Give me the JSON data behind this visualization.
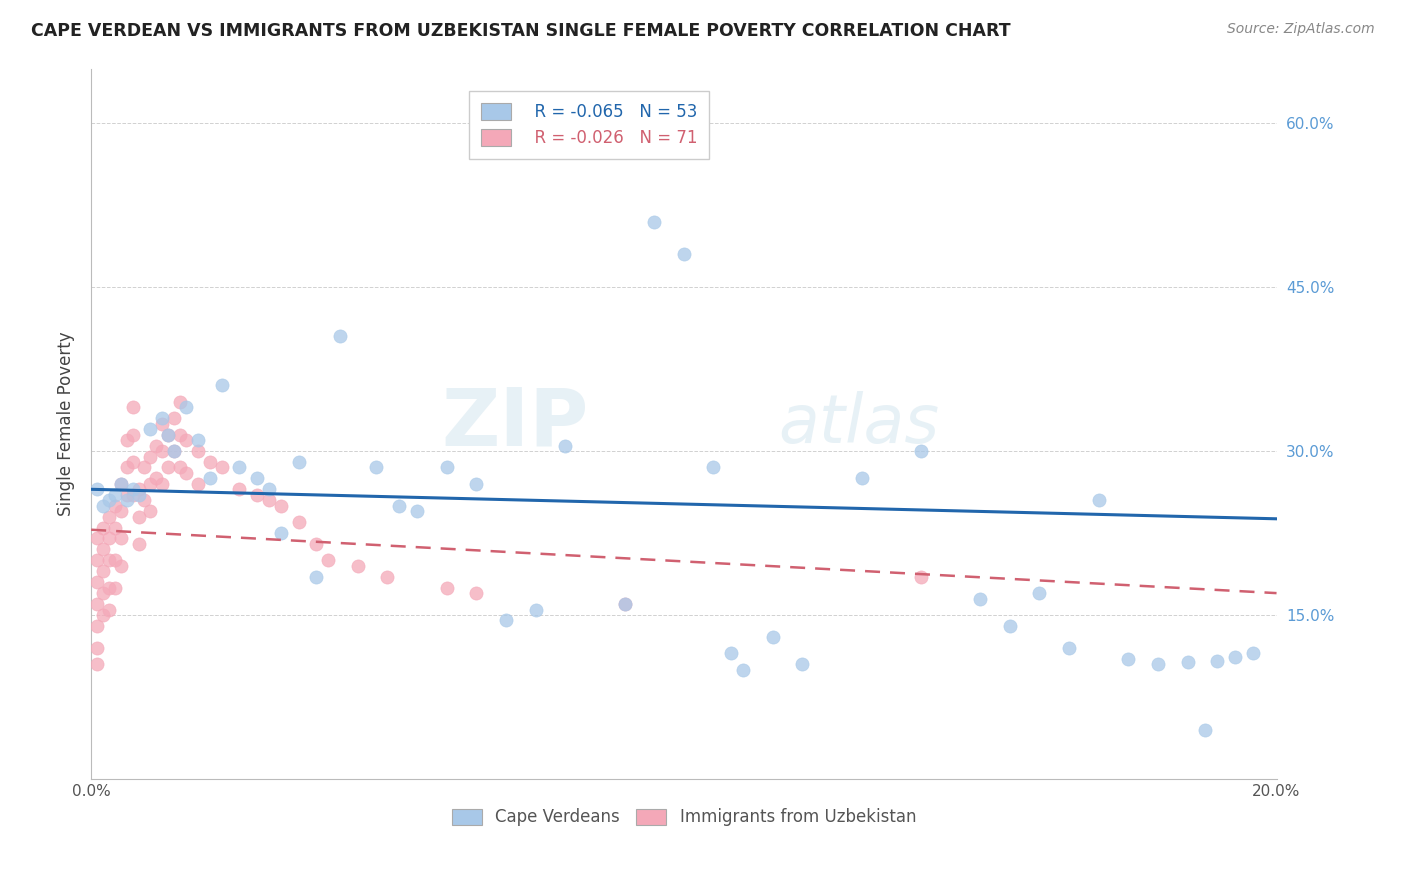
{
  "title": "CAPE VERDEAN VS IMMIGRANTS FROM UZBEKISTAN SINGLE FEMALE POVERTY CORRELATION CHART",
  "source": "Source: ZipAtlas.com",
  "ylabel": "Single Female Poverty",
  "legend_blue_label": "Cape Verdeans",
  "legend_pink_label": "Immigrants from Uzbekistan",
  "blue_R": "R = -0.065",
  "blue_N": "N = 53",
  "pink_R": "R = -0.026",
  "pink_N": "N = 71",
  "blue_color": "#a8c8e8",
  "pink_color": "#f4a8b8",
  "blue_line_color": "#2166ac",
  "pink_line_color": "#d06070",
  "xlim": [
    0.0,
    0.2
  ],
  "ylim": [
    0.0,
    0.65
  ],
  "blue_scatter_x": [
    0.001,
    0.002,
    0.003,
    0.004,
    0.005,
    0.006,
    0.007,
    0.008,
    0.01,
    0.012,
    0.013,
    0.014,
    0.016,
    0.018,
    0.02,
    0.022,
    0.025,
    0.028,
    0.03,
    0.032,
    0.035,
    0.038,
    0.042,
    0.048,
    0.052,
    0.055,
    0.06,
    0.065,
    0.07,
    0.075,
    0.08,
    0.09,
    0.095,
    0.1,
    0.105,
    0.108,
    0.11,
    0.115,
    0.12,
    0.13,
    0.14,
    0.15,
    0.155,
    0.16,
    0.165,
    0.17,
    0.175,
    0.18,
    0.185,
    0.188,
    0.19,
    0.193,
    0.196
  ],
  "blue_scatter_y": [
    0.265,
    0.25,
    0.255,
    0.26,
    0.27,
    0.255,
    0.265,
    0.26,
    0.32,
    0.33,
    0.315,
    0.3,
    0.34,
    0.31,
    0.275,
    0.36,
    0.285,
    0.275,
    0.265,
    0.225,
    0.29,
    0.185,
    0.405,
    0.285,
    0.25,
    0.245,
    0.285,
    0.27,
    0.145,
    0.155,
    0.305,
    0.16,
    0.51,
    0.48,
    0.285,
    0.115,
    0.1,
    0.13,
    0.105,
    0.275,
    0.3,
    0.165,
    0.14,
    0.17,
    0.12,
    0.255,
    0.11,
    0.105,
    0.107,
    0.045,
    0.108,
    0.112,
    0.115
  ],
  "pink_scatter_x": [
    0.001,
    0.001,
    0.001,
    0.001,
    0.001,
    0.001,
    0.001,
    0.002,
    0.002,
    0.002,
    0.002,
    0.002,
    0.003,
    0.003,
    0.003,
    0.003,
    0.003,
    0.004,
    0.004,
    0.004,
    0.004,
    0.005,
    0.005,
    0.005,
    0.005,
    0.006,
    0.006,
    0.006,
    0.007,
    0.007,
    0.007,
    0.007,
    0.008,
    0.008,
    0.008,
    0.009,
    0.009,
    0.01,
    0.01,
    0.01,
    0.011,
    0.011,
    0.012,
    0.012,
    0.012,
    0.013,
    0.013,
    0.014,
    0.014,
    0.015,
    0.015,
    0.015,
    0.016,
    0.016,
    0.018,
    0.018,
    0.02,
    0.022,
    0.025,
    0.028,
    0.03,
    0.032,
    0.035,
    0.038,
    0.04,
    0.045,
    0.05,
    0.06,
    0.065,
    0.09,
    0.14
  ],
  "pink_scatter_y": [
    0.22,
    0.2,
    0.18,
    0.16,
    0.14,
    0.12,
    0.105,
    0.23,
    0.21,
    0.19,
    0.17,
    0.15,
    0.24,
    0.22,
    0.2,
    0.175,
    0.155,
    0.25,
    0.23,
    0.2,
    0.175,
    0.27,
    0.245,
    0.22,
    0.195,
    0.31,
    0.285,
    0.26,
    0.34,
    0.315,
    0.29,
    0.26,
    0.265,
    0.24,
    0.215,
    0.285,
    0.255,
    0.295,
    0.27,
    0.245,
    0.305,
    0.275,
    0.325,
    0.3,
    0.27,
    0.315,
    0.285,
    0.33,
    0.3,
    0.345,
    0.315,
    0.285,
    0.31,
    0.28,
    0.3,
    0.27,
    0.29,
    0.285,
    0.265,
    0.26,
    0.255,
    0.25,
    0.235,
    0.215,
    0.2,
    0.195,
    0.185,
    0.175,
    0.17,
    0.16,
    0.185
  ]
}
